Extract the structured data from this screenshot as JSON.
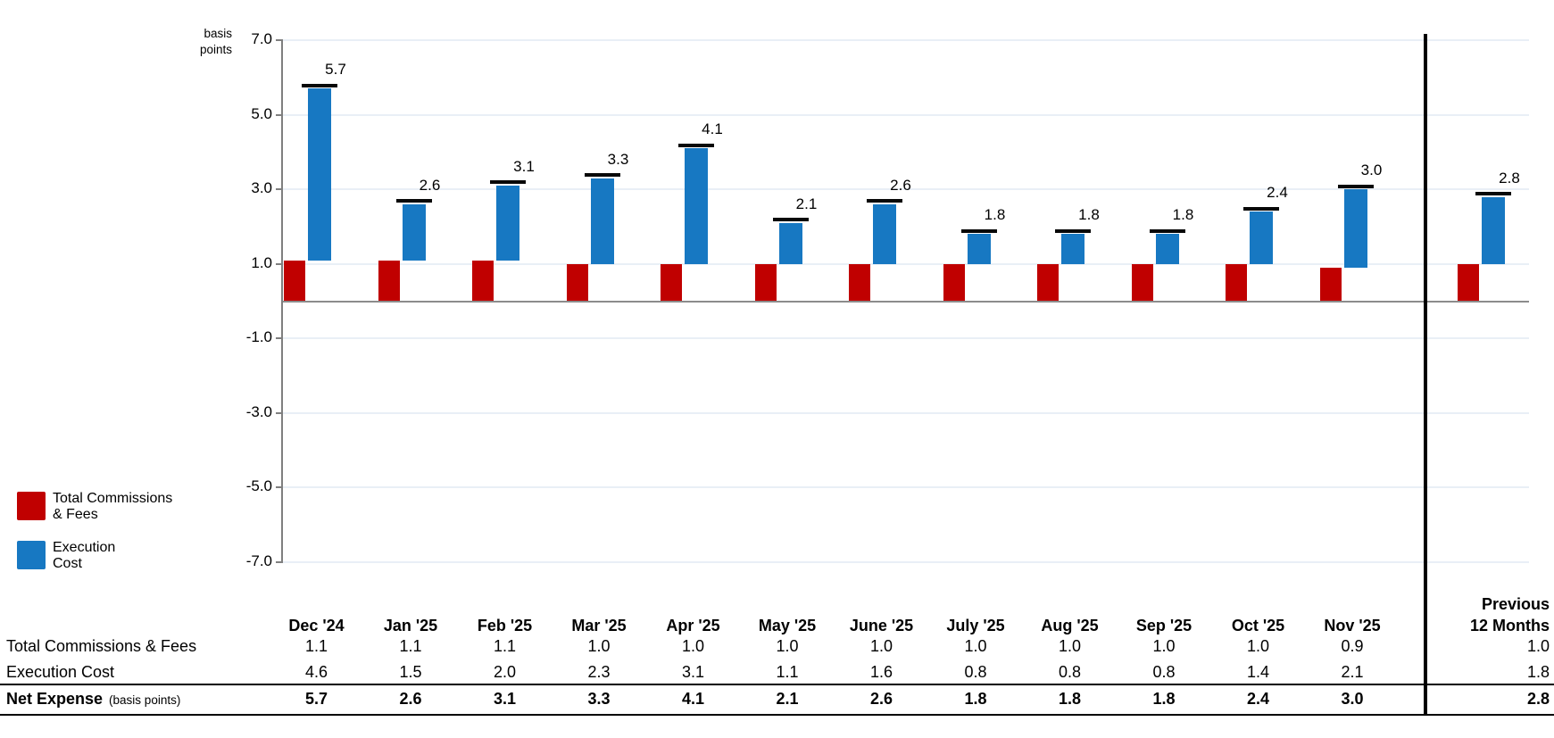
{
  "chart": {
    "unit_label_line1": "basis",
    "unit_label_line2": "points"
  },
  "legend": {
    "items": [
      {
        "line1": "Total Commissions",
        "line2": "& Fees",
        "color": "#C00000"
      },
      {
        "line1": "Execution",
        "line2": "Cost",
        "color": "#1778C2"
      }
    ]
  },
  "chart_data": {
    "type": "bar",
    "subtype": "stacked-offset-with-total-caps",
    "title": "",
    "xlabel": "",
    "ylabel": "basis points",
    "ylim": [
      -7.0,
      7.0
    ],
    "yticks": [
      7.0,
      5.0,
      3.0,
      1.0,
      -1.0,
      -3.0,
      -5.0,
      -7.0
    ],
    "grid": true,
    "legend_position": "bottom-left",
    "categories": [
      "Dec '24",
      "Jan '25",
      "Feb '25",
      "Mar '25",
      "Apr '25",
      "May '25",
      "June '25",
      "July '25",
      "Aug '25",
      "Sep '25",
      "Oct '25",
      "Nov '25",
      "Previous 12 Months"
    ],
    "series": [
      {
        "name": "Total Commissions & Fees",
        "color": "#C00000",
        "values": [
          1.1,
          1.1,
          1.1,
          1.0,
          1.0,
          1.0,
          1.0,
          1.0,
          1.0,
          1.0,
          1.0,
          0.9,
          1.0
        ]
      },
      {
        "name": "Execution Cost",
        "color": "#1778C2",
        "values": [
          4.6,
          1.5,
          2.0,
          2.3,
          3.1,
          1.1,
          1.6,
          0.8,
          0.8,
          0.8,
          1.4,
          2.1,
          1.8
        ]
      }
    ],
    "totals": [
      5.7,
      2.6,
      3.1,
      3.3,
      4.1,
      2.1,
      2.6,
      1.8,
      1.8,
      1.8,
      2.4,
      3.0,
      2.8
    ],
    "total_labels": [
      "5.7",
      "2.6",
      "3.1",
      "3.3",
      "4.1",
      "2.1",
      "2.6",
      "1.8",
      "1.8",
      "1.8",
      "2.4",
      "3.0",
      "2.8"
    ],
    "separator_after_category": "Nov '25"
  },
  "table": {
    "month_columns": [
      "Dec '24",
      "Jan '25",
      "Feb '25",
      "Mar '25",
      "Apr '25",
      "May '25",
      "June '25",
      "July '25",
      "Aug '25",
      "Sep '25",
      "Oct '25",
      "Nov '25"
    ],
    "previous_column": {
      "line1": "Previous",
      "line2": "12 Months"
    },
    "rows": [
      {
        "label": "Total Commissions & Fees",
        "suffix": "",
        "bold": false,
        "values": [
          "1.1",
          "1.1",
          "1.1",
          "1.0",
          "1.0",
          "1.0",
          "1.0",
          "1.0",
          "1.0",
          "1.0",
          "1.0",
          "0.9"
        ],
        "previous": "1.0"
      },
      {
        "label": "Execution Cost",
        "suffix": "",
        "bold": false,
        "values": [
          "4.6",
          "1.5",
          "2.0",
          "2.3",
          "3.1",
          "1.1",
          "1.6",
          "0.8",
          "0.8",
          "0.8",
          "1.4",
          "2.1"
        ],
        "previous": "1.8"
      },
      {
        "label": "Net Expense",
        "suffix": "(basis points)",
        "bold": true,
        "values": [
          "5.7",
          "2.6",
          "3.1",
          "3.3",
          "4.1",
          "2.1",
          "2.6",
          "1.8",
          "1.8",
          "1.8",
          "2.4",
          "3.0"
        ],
        "previous": "2.8"
      }
    ]
  }
}
